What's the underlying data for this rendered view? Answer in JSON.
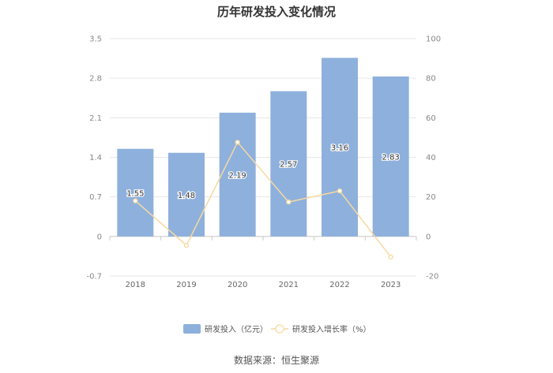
{
  "source_text": "数据来源：恒生聚源",
  "chart_data": {
    "type": "bar",
    "title": "历年研发投入变化情况",
    "categories": [
      "2018",
      "2019",
      "2020",
      "2021",
      "2022",
      "2023"
    ],
    "series": [
      {
        "name": "研发投入（亿元）",
        "type": "bar",
        "axis": "left",
        "values": [
          1.55,
          1.48,
          2.19,
          2.57,
          3.16,
          2.83
        ],
        "value_labels": [
          "1.55",
          "1.48",
          "2.19",
          "2.57",
          "3.16",
          "2.83"
        ],
        "color": "#8eb0dc"
      },
      {
        "name": "研发投入增长率（%）",
        "type": "line",
        "axis": "right",
        "values": [
          18,
          -4.5,
          47.6,
          17.4,
          23,
          -10.4
        ],
        "color": "#f6d9a0"
      }
    ],
    "y_left": {
      "ticks": [
        "3.5",
        "2.8",
        "2.1",
        "1.4",
        "0.7",
        "0",
        "-0.7"
      ],
      "range": [
        -0.7,
        3.5
      ]
    },
    "y_right": {
      "ticks": [
        "100",
        "80",
        "60",
        "40",
        "20",
        "0",
        "-20"
      ],
      "range": [
        -20,
        100
      ]
    },
    "grid": true,
    "legend_position": "bottom"
  }
}
